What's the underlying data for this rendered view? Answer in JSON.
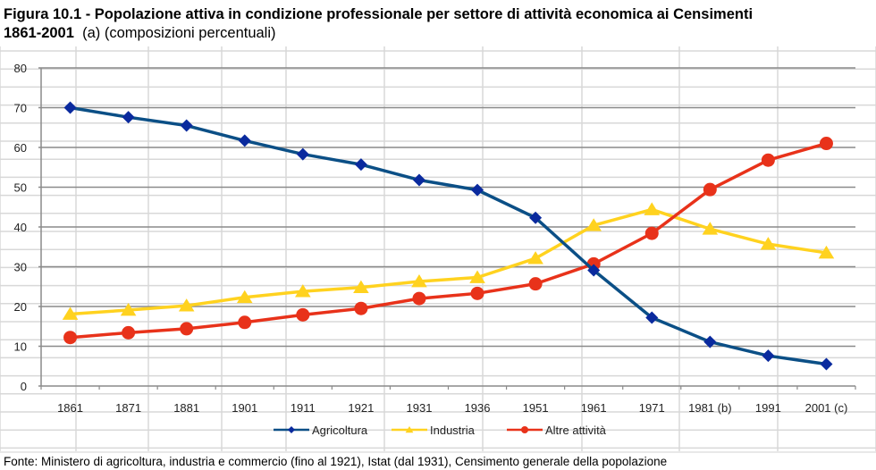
{
  "title": {
    "bold": "Figura 10.1 - Popolazione attiva in condizione professionale per settore di attività economica ai Censimenti",
    "bold2": "1861-2001",
    "rest": "(a) (composizioni percentuali)"
  },
  "footer": "Fonte: Ministero di agricoltura, industria e commercio (fino al 1921), Istat (dal 1931), Censimento generale della popolazione",
  "chart_data": {
    "type": "line",
    "categories": [
      "1861",
      "1871",
      "1881",
      "1901",
      "1911",
      "1921",
      "1931",
      "1936",
      "1951",
      "1961",
      "1971",
      "1981 (b)",
      "1991",
      "2001 (c)"
    ],
    "ylim": [
      0,
      80
    ],
    "yticks": [
      0,
      10,
      20,
      30,
      40,
      50,
      60,
      70,
      80
    ],
    "grid": true,
    "legend": "bottom",
    "series": [
      {
        "name": "Agricoltura",
        "color": "#0b4f86",
        "marker": "diamond",
        "marker_color": "#0a2a9e",
        "values": [
          70.0,
          67.6,
          65.5,
          61.7,
          58.3,
          55.7,
          51.8,
          49.3,
          42.3,
          29.1,
          17.2,
          11.1,
          7.6,
          5.5
        ]
      },
      {
        "name": "Industria",
        "color": "#ffd21f",
        "marker": "triangle",
        "marker_color": "#ffd21f",
        "values": [
          18.1,
          19.1,
          20.2,
          22.3,
          23.8,
          24.8,
          26.3,
          27.3,
          32.1,
          40.4,
          44.4,
          39.5,
          35.7,
          33.5
        ]
      },
      {
        "name": "Altre attività",
        "color": "#e8321a",
        "marker": "circle",
        "marker_color": "#e8321a",
        "values": [
          12.2,
          13.4,
          14.4,
          16.0,
          17.9,
          19.5,
          22.0,
          23.3,
          25.7,
          30.7,
          38.4,
          49.4,
          56.8,
          61.0
        ]
      }
    ]
  }
}
